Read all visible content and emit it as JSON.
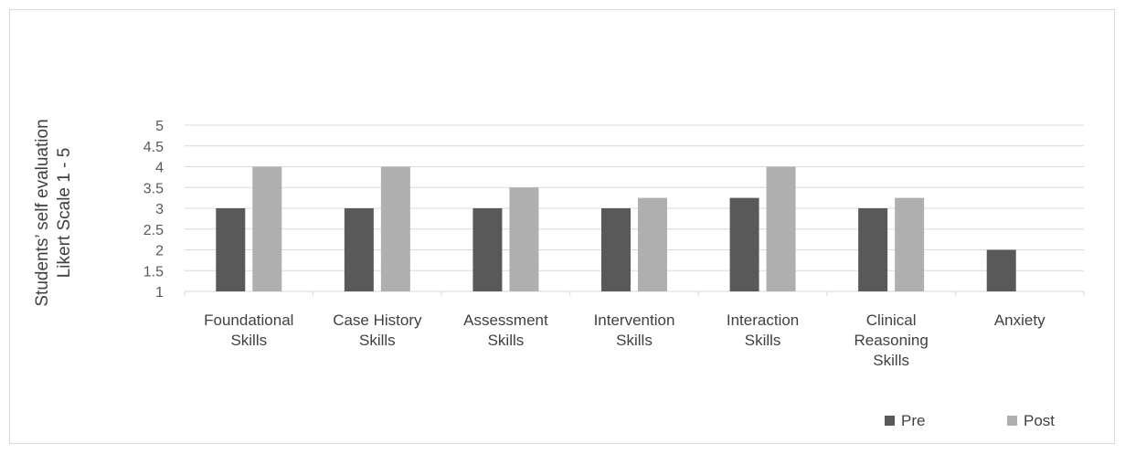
{
  "chart_data": {
    "type": "bar",
    "ylabel": [
      "Students’ self evaluation",
      "Likert Scale 1 - 5"
    ],
    "ylim": [
      1,
      5
    ],
    "yticks": [
      "1",
      "1.5",
      "2",
      "2.5",
      "3",
      "3.5",
      "4",
      "4.5",
      "5"
    ],
    "grid": true,
    "legend_position": "bottom-right",
    "categories": [
      [
        "Foundational",
        "Skills"
      ],
      [
        "Case History",
        "Skills"
      ],
      [
        "Assessment",
        "Skills"
      ],
      [
        "Intervention",
        "Skills"
      ],
      [
        "Interaction",
        "Skills"
      ],
      [
        "Clinical",
        "Reasoning",
        "Skills"
      ],
      [
        "Anxiety"
      ]
    ],
    "series": [
      {
        "name": "Pre",
        "color": "#595959",
        "values": [
          3,
          3,
          3,
          3,
          3.25,
          3,
          2
        ]
      },
      {
        "name": "Post",
        "color": "#afafaf",
        "values": [
          4,
          4,
          3.5,
          3.25,
          4,
          3.25,
          null
        ]
      }
    ]
  }
}
